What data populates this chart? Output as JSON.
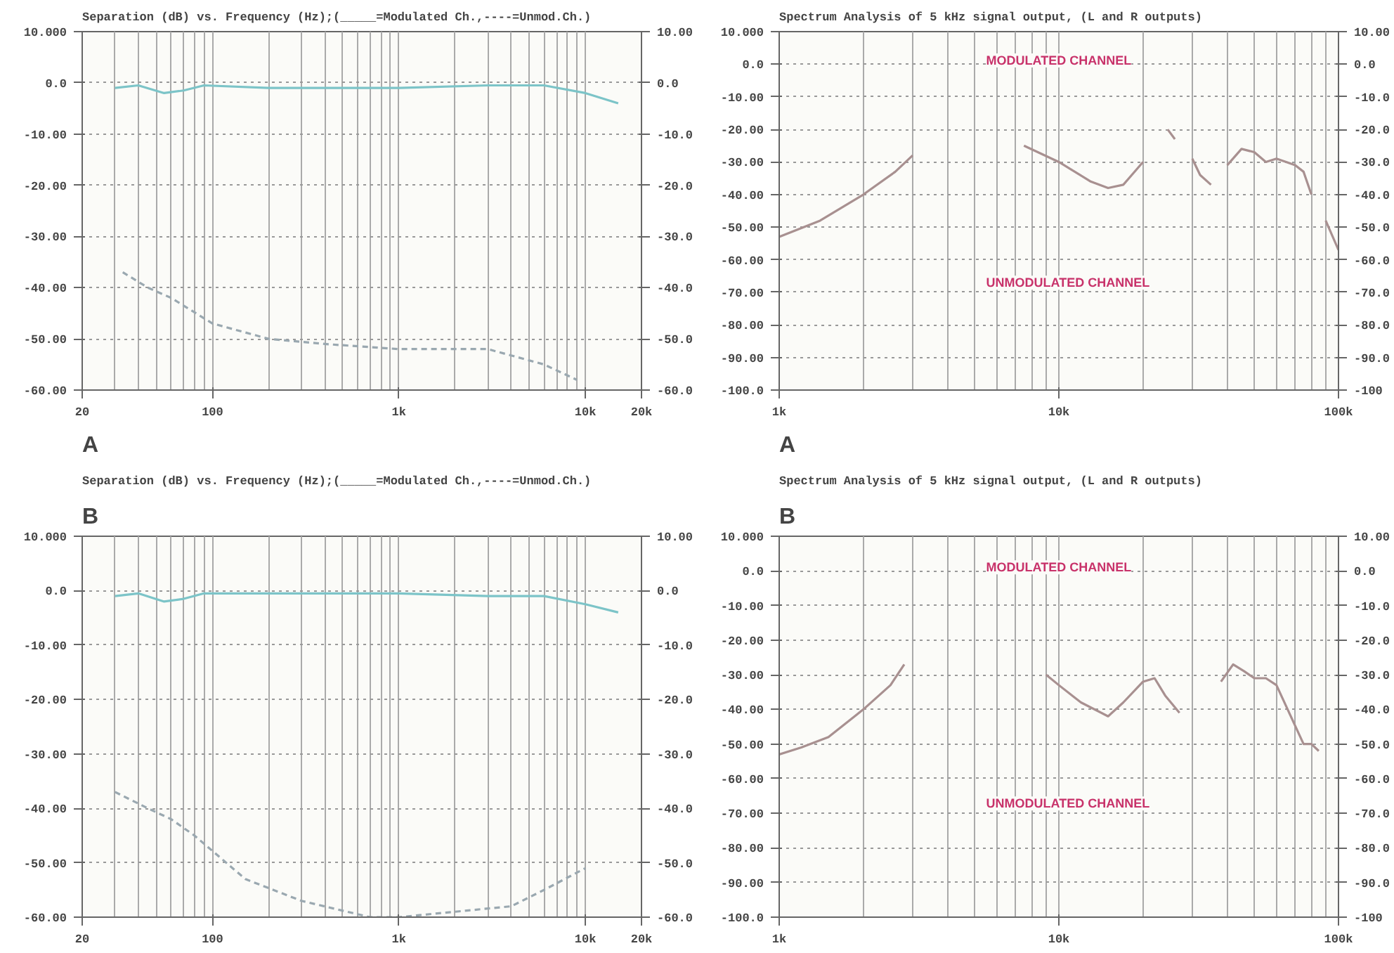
{
  "chart_data": [
    {
      "type": "line",
      "title": "Separation (dB) vs. Frequency (Hz);(_____=Modulated Ch.,----=Unmod.Ch.)",
      "subtitle": "A",
      "log": "x",
      "grid": true,
      "marker": "none",
      "xlim": [
        20,
        20000
      ],
      "xticks": [
        20,
        100,
        {
          "value": 1000,
          "label": "1k"
        },
        {
          "value": 10000,
          "label": "10k"
        },
        {
          "value": 20000,
          "label": "20k"
        }
      ],
      "ylim": [
        -60,
        10
      ],
      "yticks": [
        {
          "value": 10,
          "label": "10.000"
        },
        {
          "value": 0,
          "label": "0.0"
        },
        {
          "value": -10,
          "label": "-10.00"
        },
        {
          "value": -20,
          "label": "-20.00"
        },
        {
          "value": -30,
          "label": "-30.00"
        },
        {
          "value": -40,
          "label": "-40.00"
        },
        {
          "value": -50,
          "label": "-50.00"
        },
        {
          "value": -60,
          "label": "-60.00"
        }
      ],
      "y2lim": [
        -60,
        10
      ],
      "y2ticks": [
        {
          "value": 10,
          "label": "10.00"
        },
        {
          "value": 0,
          "label": "0.0"
        },
        {
          "value": -10,
          "label": "-10.0"
        },
        {
          "value": -20,
          "label": "-20.0"
        },
        {
          "value": -30,
          "label": "-30.0"
        },
        {
          "value": -40,
          "label": "-40.0"
        },
        {
          "value": -50,
          "label": "-50.0"
        },
        {
          "value": -60,
          "label": "-60.0"
        }
      ],
      "series": [
        {
          "color": "#7cc4c8",
          "line_style": "solid",
          "x": [
            30,
            40,
            55,
            70,
            90,
            200,
            1000,
            3000,
            6000,
            10000,
            15000
          ],
          "values": [
            -1,
            -0.5,
            -2,
            -1.5,
            -0.5,
            -1,
            -1,
            -0.5,
            -0.5,
            -2,
            -4
          ]
        },
        {
          "color": "#9aa8b0",
          "line_style": "dashed",
          "x": [
            33,
            45,
            60,
            100,
            200,
            400,
            1000,
            3000,
            6000,
            9000
          ],
          "values": [
            -37,
            -40,
            -42,
            -47,
            -50,
            -51,
            -52,
            -52,
            -55,
            -58
          ]
        }
      ]
    },
    {
      "type": "line",
      "title": "Spectrum Analysis of 5 kHz signal output, (L and R outputs)",
      "subtitle": "A",
      "log": "x",
      "grid": true,
      "marker": "none",
      "xlim": [
        1000,
        100000
      ],
      "xticks": [
        {
          "value": 1000,
          "label": "1k"
        },
        {
          "value": 10000,
          "label": "10k"
        },
        {
          "value": 100000,
          "label": "100k"
        }
      ],
      "ylim": [
        -100,
        10
      ],
      "yticks": [
        {
          "value": 10,
          "label": "10.000"
        },
        {
          "value": 0,
          "label": "0.0"
        },
        {
          "value": -10,
          "label": "-10.00"
        },
        {
          "value": -20,
          "label": "-20.00"
        },
        {
          "value": -30,
          "label": "-30.00"
        },
        {
          "value": -40,
          "label": "-40.00"
        },
        {
          "value": -50,
          "label": "-50.00"
        },
        {
          "value": -60,
          "label": "-60.00"
        },
        {
          "value": -70,
          "label": "-70.00"
        },
        {
          "value": -80,
          "label": "-80.00"
        },
        {
          "value": -90,
          "label": "-90.00"
        },
        {
          "value": -100,
          "label": "-100.0"
        }
      ],
      "y2lim": [
        -100,
        10
      ],
      "y2ticks": [
        {
          "value": 10,
          "label": "10.00"
        },
        {
          "value": 0,
          "label": "0.0"
        },
        {
          "value": -10,
          "label": "-10.0"
        },
        {
          "value": -20,
          "label": "-20.0"
        },
        {
          "value": -30,
          "label": "-30.0"
        },
        {
          "value": -40,
          "label": "-40.0"
        },
        {
          "value": -50,
          "label": "-50.0"
        },
        {
          "value": -60,
          "label": "-60.0"
        },
        {
          "value": -70,
          "label": "-70.0"
        },
        {
          "value": -80,
          "label": "-80.0"
        },
        {
          "value": -90,
          "label": "-90.0"
        },
        {
          "value": -100,
          "label": "-100"
        }
      ],
      "annotations": [
        "MODULATED CHANNEL",
        "UNMODULATED CHANNEL"
      ],
      "series": [
        {
          "color": "#a89090",
          "line_style": "solid",
          "x": [
            1000,
            1400,
            2000,
            2600,
            3000,
            5000,
            7500,
            10000,
            13000,
            15000,
            17000,
            20000,
            23000,
            24500,
            26000,
            28000,
            30000,
            32000,
            35000,
            38000,
            40000,
            45000,
            50000,
            55000,
            60000,
            65000,
            70000,
            75000,
            80000,
            85000,
            90000,
            100000
          ],
          "values": [
            -53,
            -48,
            -40,
            -33,
            -28,
            null,
            -25,
            -30,
            -36,
            -38,
            -37,
            -30,
            null,
            -20,
            -23,
            null,
            -29,
            -34,
            -37,
            null,
            -31,
            -26,
            -27,
            -30,
            -29,
            -30,
            -31,
            -33,
            -40,
            null,
            -48,
            -57
          ]
        }
      ]
    },
    {
      "type": "line",
      "title": "Separation (dB) vs. Frequency (Hz);(_____=Modulated Ch.,----=Unmod.Ch.)",
      "subtitle": "B",
      "log": "x",
      "grid": true,
      "marker": "none",
      "xlim": [
        20,
        20000
      ],
      "xticks": [
        20,
        100,
        {
          "value": 1000,
          "label": "1k"
        },
        {
          "value": 10000,
          "label": "10k"
        },
        {
          "value": 20000,
          "label": "20k"
        }
      ],
      "ylim": [
        -60,
        10
      ],
      "yticks": [
        {
          "value": 10,
          "label": "10.000"
        },
        {
          "value": 0,
          "label": "0.0"
        },
        {
          "value": -10,
          "label": "-10.00"
        },
        {
          "value": -20,
          "label": "-20.00"
        },
        {
          "value": -30,
          "label": "-30.00"
        },
        {
          "value": -40,
          "label": "-40.00"
        },
        {
          "value": -50,
          "label": "-50.00"
        },
        {
          "value": -60,
          "label": "-60.00"
        }
      ],
      "y2lim": [
        -60,
        10
      ],
      "y2ticks": [
        {
          "value": 10,
          "label": "10.00"
        },
        {
          "value": 0,
          "label": "0.0"
        },
        {
          "value": -10,
          "label": "-10.0"
        },
        {
          "value": -20,
          "label": "-20.0"
        },
        {
          "value": -30,
          "label": "-30.0"
        },
        {
          "value": -40,
          "label": "-40.0"
        },
        {
          "value": -50,
          "label": "-50.0"
        },
        {
          "value": -60,
          "label": "-60.0"
        }
      ],
      "series": [
        {
          "color": "#7cc4c8",
          "line_style": "solid",
          "x": [
            30,
            40,
            55,
            70,
            90,
            200,
            1000,
            3000,
            6000,
            10000,
            15000
          ],
          "values": [
            -1,
            -0.5,
            -2,
            -1.5,
            -0.5,
            -0.5,
            -0.5,
            -1,
            -1,
            -2.5,
            -4
          ]
        },
        {
          "color": "#9aa8b0",
          "line_style": "dashed",
          "x": [
            30,
            45,
            60,
            80,
            150,
            300,
            700,
            1000,
            2000,
            4000,
            6000,
            10000
          ],
          "values": [
            -37,
            -40,
            -42,
            -45,
            -53,
            -57,
            -60,
            -60,
            -59,
            -58,
            -55,
            -51
          ]
        }
      ]
    },
    {
      "type": "line",
      "title": "Spectrum Analysis of 5 kHz signal output, (L and R outputs)",
      "subtitle": "B",
      "log": "x",
      "grid": true,
      "marker": "none",
      "xlim": [
        1000,
        100000
      ],
      "xticks": [
        {
          "value": 1000,
          "label": "1k"
        },
        {
          "value": 10000,
          "label": "10k"
        },
        {
          "value": 100000,
          "label": "100k"
        }
      ],
      "ylim": [
        -100,
        10
      ],
      "yticks": [
        {
          "value": 10,
          "label": "10.000"
        },
        {
          "value": 0,
          "label": "0.0"
        },
        {
          "value": -10,
          "label": "-10.00"
        },
        {
          "value": -20,
          "label": "-20.00"
        },
        {
          "value": -30,
          "label": "-30.00"
        },
        {
          "value": -40,
          "label": "-40.00"
        },
        {
          "value": -50,
          "label": "-50.00"
        },
        {
          "value": -60,
          "label": "-60.00"
        },
        {
          "value": -70,
          "label": "-70.00"
        },
        {
          "value": -80,
          "label": "-80.00"
        },
        {
          "value": -90,
          "label": "-90.00"
        },
        {
          "value": -100,
          "label": "-100.0"
        }
      ],
      "y2lim": [
        -100,
        10
      ],
      "y2ticks": [
        {
          "value": 10,
          "label": "10.00"
        },
        {
          "value": 0,
          "label": "0.0"
        },
        {
          "value": -10,
          "label": "-10.0"
        },
        {
          "value": -20,
          "label": "-20.0"
        },
        {
          "value": -30,
          "label": "-30.0"
        },
        {
          "value": -40,
          "label": "-40.0"
        },
        {
          "value": -50,
          "label": "-50.0"
        },
        {
          "value": -60,
          "label": "-60.0"
        },
        {
          "value": -70,
          "label": "-70.0"
        },
        {
          "value": -80,
          "label": "-80.0"
        },
        {
          "value": -90,
          "label": "-90.0"
        },
        {
          "value": -100,
          "label": "-100"
        }
      ],
      "annotations": [
        "MODULATED CHANNEL",
        "UNMODULATED CHANNEL"
      ],
      "series": [
        {
          "color": "#a89090",
          "line_style": "solid",
          "x": [
            1000,
            1200,
            1500,
            2000,
            2500,
            2800,
            5000,
            9000,
            10000,
            12000,
            15000,
            17000,
            20000,
            22000,
            24000,
            27000,
            35000,
            38000,
            42000,
            46000,
            50000,
            55000,
            60000,
            75000,
            80000,
            85000
          ],
          "values": [
            -53,
            -51,
            -48,
            -40,
            -33,
            -27,
            null,
            -30,
            -33,
            -38,
            -42,
            -38,
            -32,
            -31,
            -36,
            -41,
            null,
            -32,
            -27,
            -29,
            -31,
            -31,
            -33,
            -50,
            -50,
            -52
          ]
        }
      ]
    }
  ]
}
